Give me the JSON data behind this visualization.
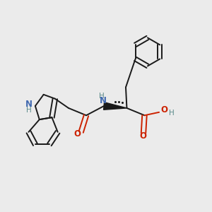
{
  "background_color": "#ebebeb",
  "bond_color": "#1a1a1a",
  "nitrogen_color": "#4169b0",
  "oxygen_color": "#cc2200",
  "nh_color": "#5a8a8a",
  "figsize": [
    3.0,
    3.0
  ],
  "dpi": 100,
  "xlim": [
    0.0,
    1.0
  ],
  "ylim": [
    0.0,
    1.0
  ]
}
